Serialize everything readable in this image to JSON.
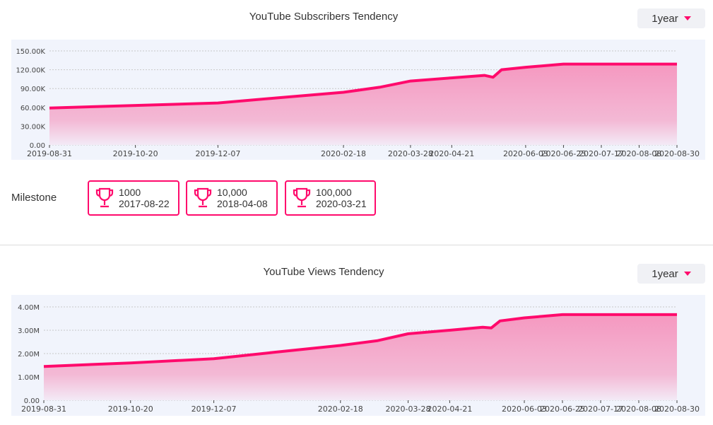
{
  "subscribers": {
    "title": "YouTube Subscribers Tendency",
    "range": "1year",
    "y_ticks": [
      "0.00",
      "30.00K",
      "60.00K",
      "90.00K",
      "120.00K",
      "150.00K"
    ],
    "x_ticks": [
      "2019-08-31",
      "2019-10-20",
      "2019-12-07",
      "2020-02-18",
      "2020-03-28",
      "2020-04-21",
      "2020-06-03",
      "2020-06-25",
      "2020-07-17",
      "2020-08-08",
      "2020-08-30"
    ]
  },
  "milestone": {
    "label": "Milestone",
    "items": [
      {
        "value": "1000",
        "date": "2017-08-22"
      },
      {
        "value": "10,000",
        "date": "2018-04-08"
      },
      {
        "value": "100,000",
        "date": "2020-03-21"
      }
    ]
  },
  "views": {
    "title": "YouTube Views Tendency",
    "range": "1year",
    "y_ticks": [
      "0.00",
      "1.00M",
      "2.00M",
      "3.00M",
      "4.00M"
    ],
    "x_ticks": [
      "2019-08-31",
      "2019-10-20",
      "2019-12-07",
      "2020-02-18",
      "2020-03-28",
      "2020-04-21",
      "2020-06-03",
      "2020-06-25",
      "2020-07-17",
      "2020-08-08",
      "2020-08-30"
    ]
  },
  "colors": {
    "accent": "#ff0a6c",
    "fill_top": "#f598c0",
    "plot_bg": "#f1f4fc"
  },
  "chart_data": [
    {
      "type": "area",
      "title": "YouTube Subscribers Tendency",
      "xlabel": "",
      "ylabel": "",
      "ylim": [
        0,
        150000
      ],
      "grid": true,
      "x": [
        "2019-08-31",
        "2019-10-20",
        "2019-12-07",
        "2020-01-10",
        "2020-02-18",
        "2020-03-10",
        "2020-03-28",
        "2020-04-21",
        "2020-05-10",
        "2020-05-15",
        "2020-05-20",
        "2020-06-03",
        "2020-06-25",
        "2020-07-17",
        "2020-08-08",
        "2020-08-30"
      ],
      "values": [
        59000,
        63000,
        67000,
        75000,
        84000,
        92000,
        102000,
        107000,
        111000,
        108000,
        120000,
        124000,
        129000,
        129000,
        129000,
        129000
      ]
    },
    {
      "type": "area",
      "title": "YouTube Views Tendency",
      "xlabel": "",
      "ylabel": "",
      "ylim": [
        0,
        4200000
      ],
      "grid": true,
      "x": [
        "2019-08-31",
        "2019-10-20",
        "2019-12-07",
        "2020-01-10",
        "2020-02-18",
        "2020-03-10",
        "2020-03-28",
        "2020-04-21",
        "2020-05-10",
        "2020-05-15",
        "2020-05-20",
        "2020-06-03",
        "2020-06-25",
        "2020-07-17",
        "2020-08-08",
        "2020-08-30"
      ],
      "values": [
        1450000,
        1600000,
        1780000,
        2050000,
        2350000,
        2550000,
        2850000,
        3000000,
        3130000,
        3100000,
        3400000,
        3530000,
        3670000,
        3670000,
        3670000,
        3670000
      ]
    }
  ]
}
